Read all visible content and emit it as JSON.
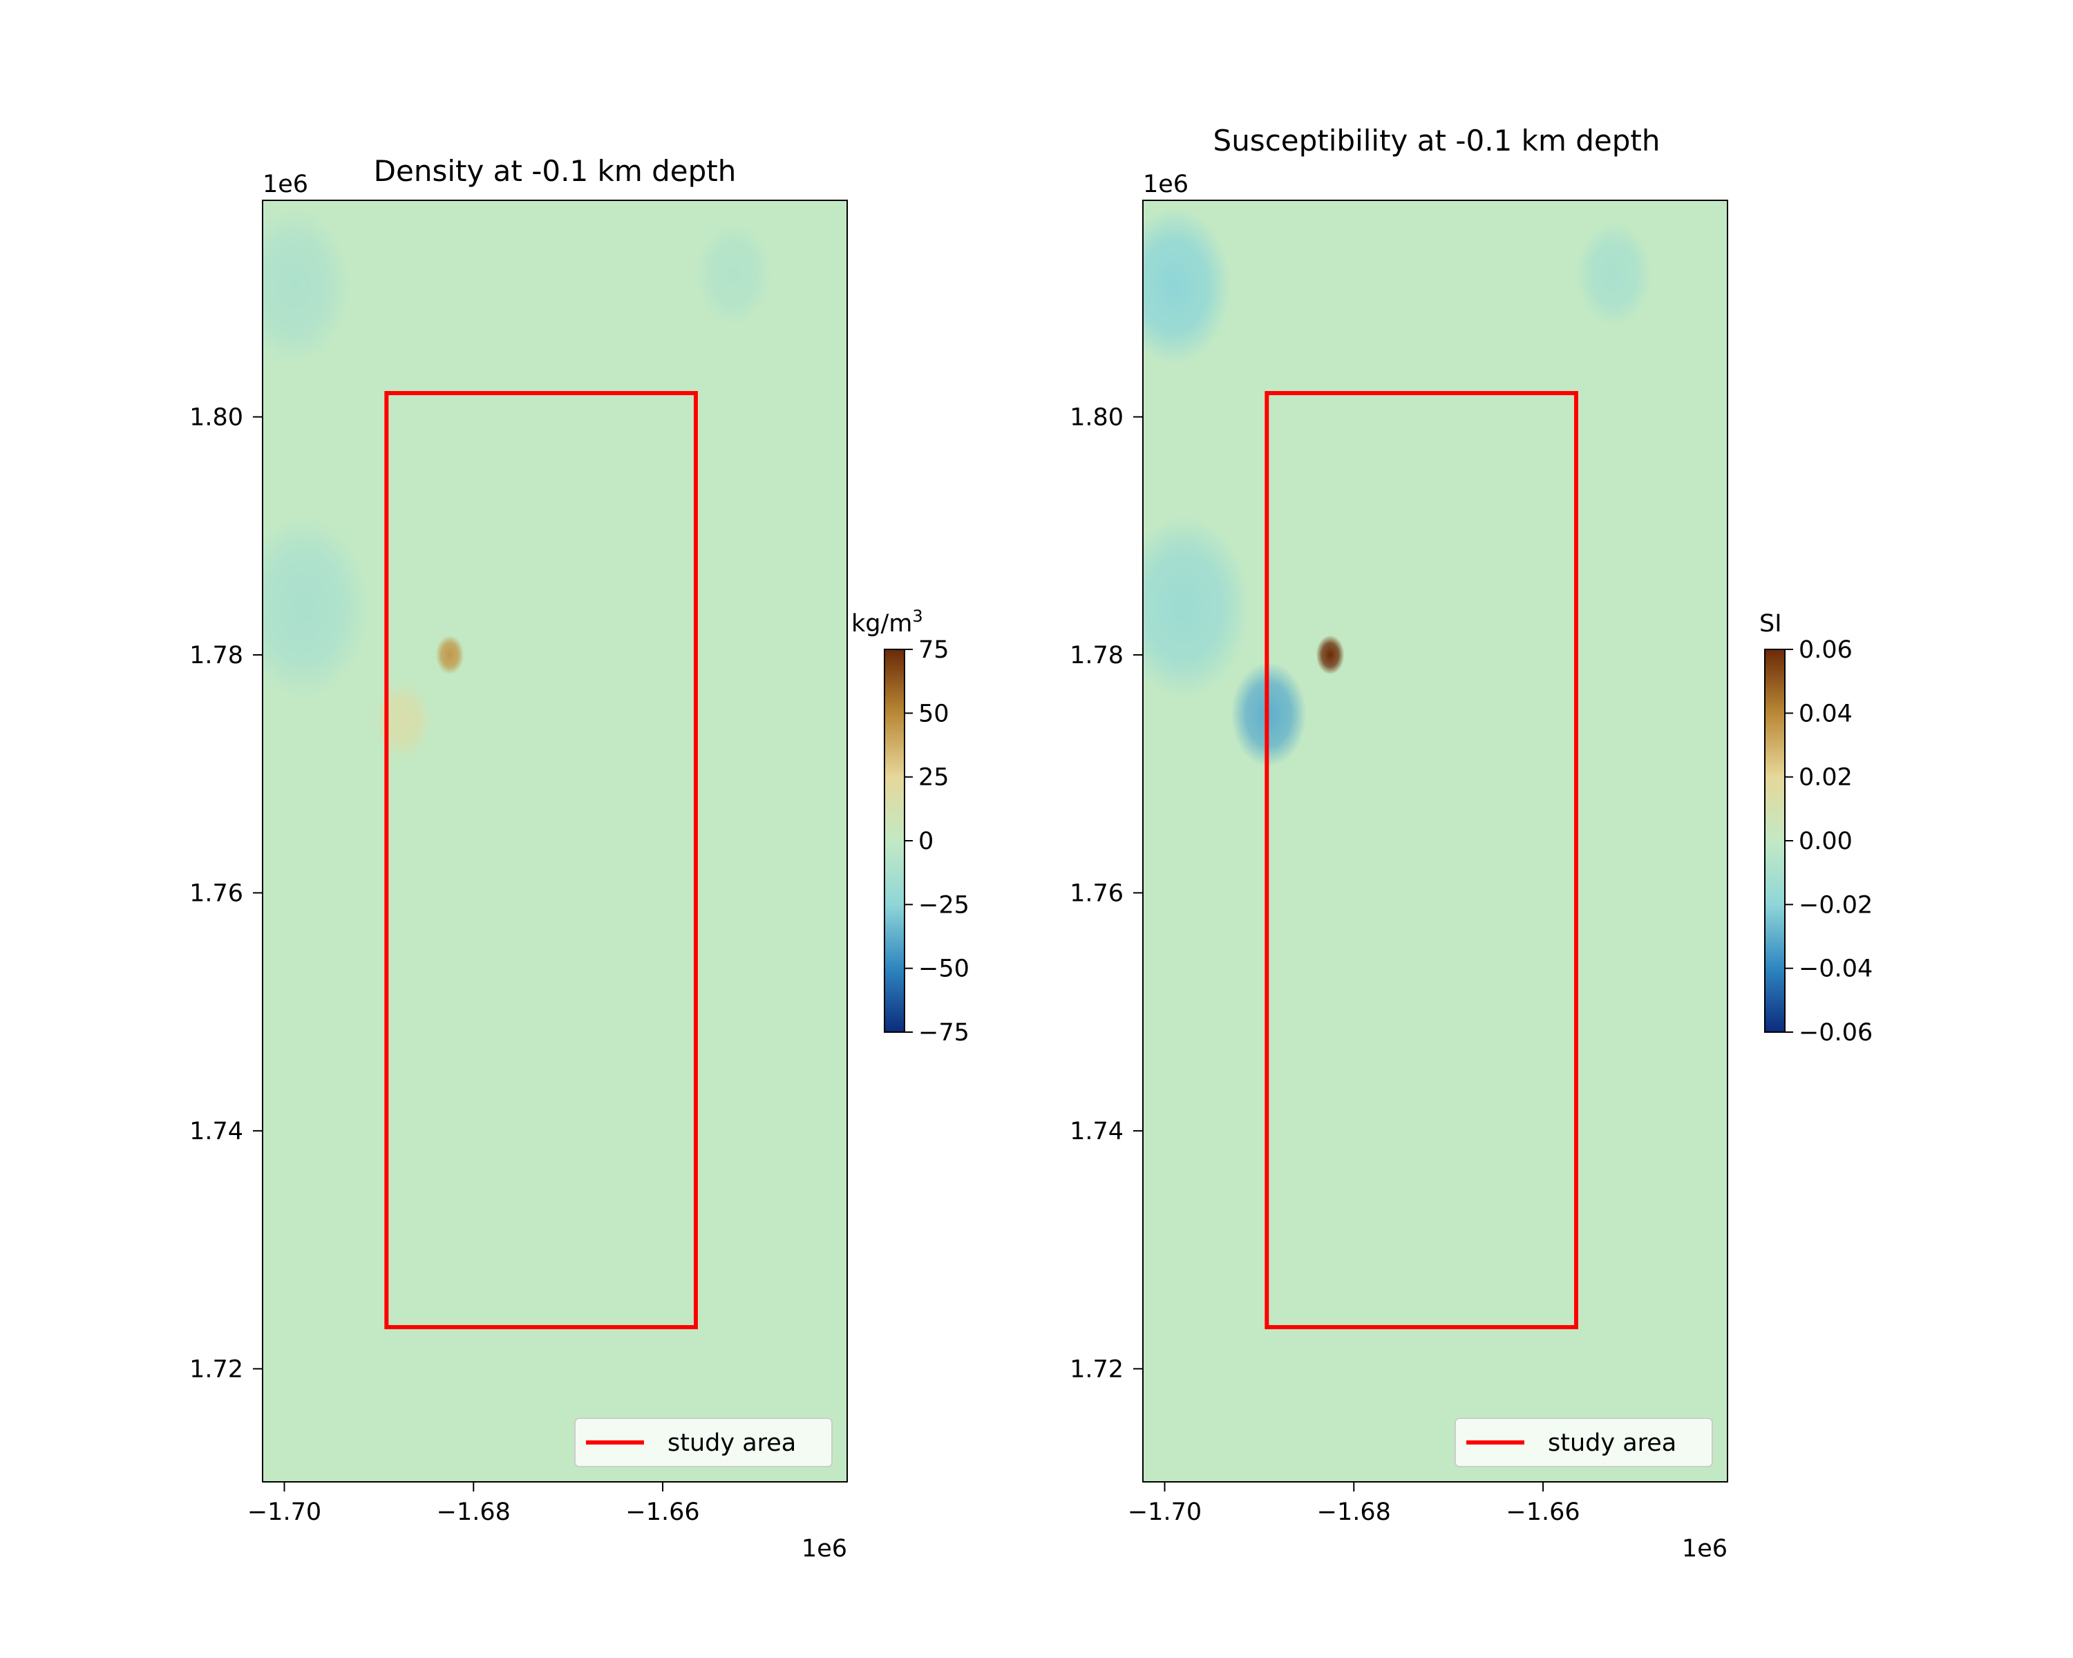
{
  "chart_data": [
    {
      "type": "heatmap",
      "title": "Density at -0.1 km depth",
      "xlabel": "",
      "ylabel": "",
      "x_ticks": [
        -1.7,
        -1.68,
        -1.66
      ],
      "x_tick_labels": [
        "−1.70",
        "−1.68",
        "−1.66"
      ],
      "y_ticks": [
        1.72,
        1.74,
        1.76,
        1.78,
        1.8
      ],
      "y_tick_labels": [
        "1.72",
        "1.74",
        "1.76",
        "1.78",
        "1.80"
      ],
      "x_offset_label": "1e6",
      "y_offset_label": "1e6",
      "xlim": [
        -1.7023,
        -1.6405
      ],
      "ylim": [
        1.7105,
        1.8182
      ],
      "background_value": 0,
      "study_area": {
        "x": [
          -1.6892,
          -1.6565
        ],
        "y": [
          1.7235,
          1.802
        ]
      },
      "anomalies": [
        {
          "x": -1.6825,
          "y": 1.78,
          "value": 45,
          "size": 0.0015
        },
        {
          "x": -1.6875,
          "y": 1.7745,
          "value": 15,
          "size": 0.003
        },
        {
          "x": -1.698,
          "y": 1.784,
          "value": -12,
          "size": 0.007
        },
        {
          "x": -1.699,
          "y": 1.811,
          "value": -10,
          "size": 0.006
        },
        {
          "x": -1.6525,
          "y": 1.812,
          "value": -8,
          "size": 0.004
        }
      ],
      "colorbar": {
        "label": "kg/m",
        "label_superscript": "3",
        "ticks": [
          -75,
          -50,
          -25,
          0,
          25,
          50,
          75
        ],
        "tick_labels": [
          "−75",
          "−50",
          "−25",
          "0",
          "25",
          "50",
          "75"
        ],
        "range": [
          -75,
          75
        ]
      },
      "legend": {
        "label": "study area",
        "color": "#ff0000",
        "placement": "lower right"
      }
    },
    {
      "type": "heatmap",
      "title": "Susceptibility at -0.1 km depth",
      "xlabel": "",
      "ylabel": "",
      "x_ticks": [
        -1.7,
        -1.68,
        -1.66
      ],
      "x_tick_labels": [
        "−1.70",
        "−1.68",
        "−1.66"
      ],
      "y_ticks": [
        1.72,
        1.74,
        1.76,
        1.78,
        1.8
      ],
      "y_tick_labels": [
        "1.72",
        "1.74",
        "1.76",
        "1.78",
        "1.80"
      ],
      "x_offset_label": "1e6",
      "y_offset_label": "1e6",
      "xlim": [
        -1.7023,
        -1.6405
      ],
      "ylim": [
        1.7105,
        1.8182
      ],
      "background_value": 0,
      "study_area": {
        "x": [
          -1.6892,
          -1.6565
        ],
        "y": [
          1.7235,
          1.802
        ]
      },
      "anomalies": [
        {
          "x": -1.6825,
          "y": 1.78,
          "value": 0.06,
          "size": 0.0015
        },
        {
          "x": -1.689,
          "y": 1.775,
          "value": -0.03,
          "size": 0.004
        },
        {
          "x": -1.698,
          "y": 1.784,
          "value": -0.015,
          "size": 0.007
        },
        {
          "x": -1.699,
          "y": 1.811,
          "value": -0.02,
          "size": 0.006
        },
        {
          "x": -1.6525,
          "y": 1.812,
          "value": -0.01,
          "size": 0.004
        }
      ],
      "colorbar": {
        "label": "SI",
        "label_superscript": "",
        "ticks": [
          -0.06,
          -0.04,
          -0.02,
          0.0,
          0.02,
          0.04,
          0.06
        ],
        "tick_labels": [
          "−0.06",
          "−0.04",
          "−0.02",
          "0.00",
          "0.02",
          "0.04",
          "0.06"
        ],
        "range": [
          -0.06,
          0.06
        ]
      },
      "legend": {
        "label": "study area",
        "color": "#ff0000",
        "placement": "lower right"
      }
    }
  ],
  "colors": {
    "background_field": "#c3e9c4",
    "frame": "#000000",
    "colormap": [
      "#0b2b7d",
      "#2f86c0",
      "#8fd6d8",
      "#c3e9c4",
      "#e6d79a",
      "#b98836",
      "#6b2a07"
    ]
  }
}
